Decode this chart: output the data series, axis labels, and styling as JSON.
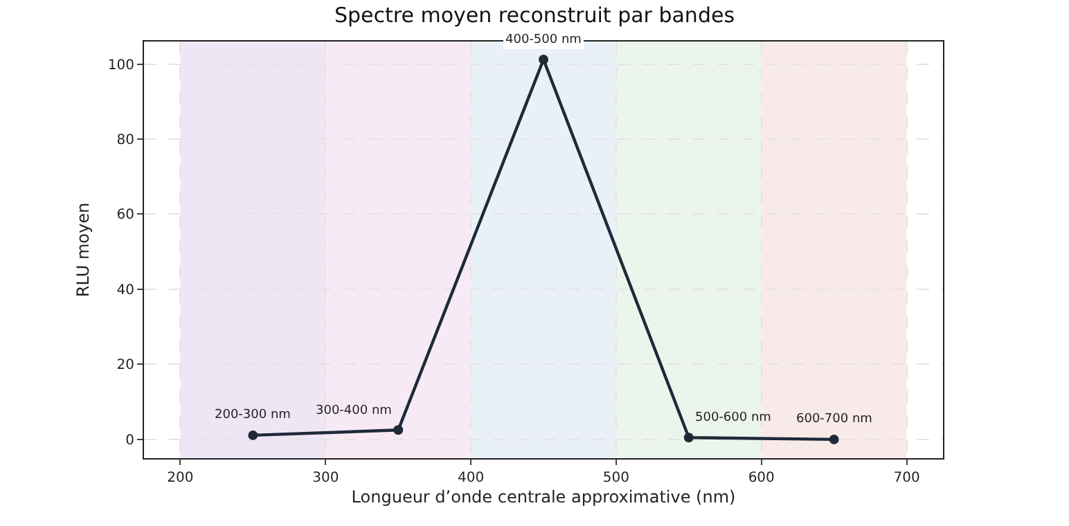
{
  "chart_data": {
    "type": "line",
    "title": "Spectre moyen reconstruit par bandes",
    "xlabel": "Longueur d’onde centrale approximative (nm)",
    "ylabel": "RLU moyen",
    "x": [
      250,
      350,
      450,
      550,
      650
    ],
    "series": [
      {
        "color": "#1f2a38",
        "values": [
          1.1,
          2.5,
          101.2,
          0.5,
          0
        ]
      }
    ],
    "annotations": [
      {
        "text": "200-300 nm",
        "x": 250,
        "y": 1.1
      },
      {
        "text": "300-400 nm",
        "x": 350,
        "y": 2.5
      },
      {
        "text": "400-500 nm",
        "x": 450,
        "y": 101.2
      },
      {
        "text": "500-600 nm",
        "x": 550,
        "y": 0.5
      },
      {
        "text": "600-700 nm",
        "x": 650,
        "y": 0
      }
    ],
    "bands": [
      {
        "axis": "x",
        "from": 200,
        "to": 300,
        "color": "#efe6f5"
      },
      {
        "axis": "x",
        "from": 300,
        "to": 400,
        "color": "#f7eaf4"
      },
      {
        "axis": "x",
        "from": 400,
        "to": 500,
        "color": "#e9f0f8"
      },
      {
        "axis": "x",
        "from": 500,
        "to": 600,
        "color": "#ebf5ec"
      },
      {
        "axis": "x",
        "from": 600,
        "to": 700,
        "color": "#f9eaea"
      }
    ],
    "xlim": [
      175,
      725
    ],
    "xticks": [
      200,
      300,
      400,
      500,
      600,
      700
    ],
    "ylim": [
      -5,
      106
    ],
    "yticks": [
      0,
      20,
      40,
      60,
      80,
      100
    ],
    "grid": true,
    "marker": "circle",
    "line_style": "solid"
  }
}
